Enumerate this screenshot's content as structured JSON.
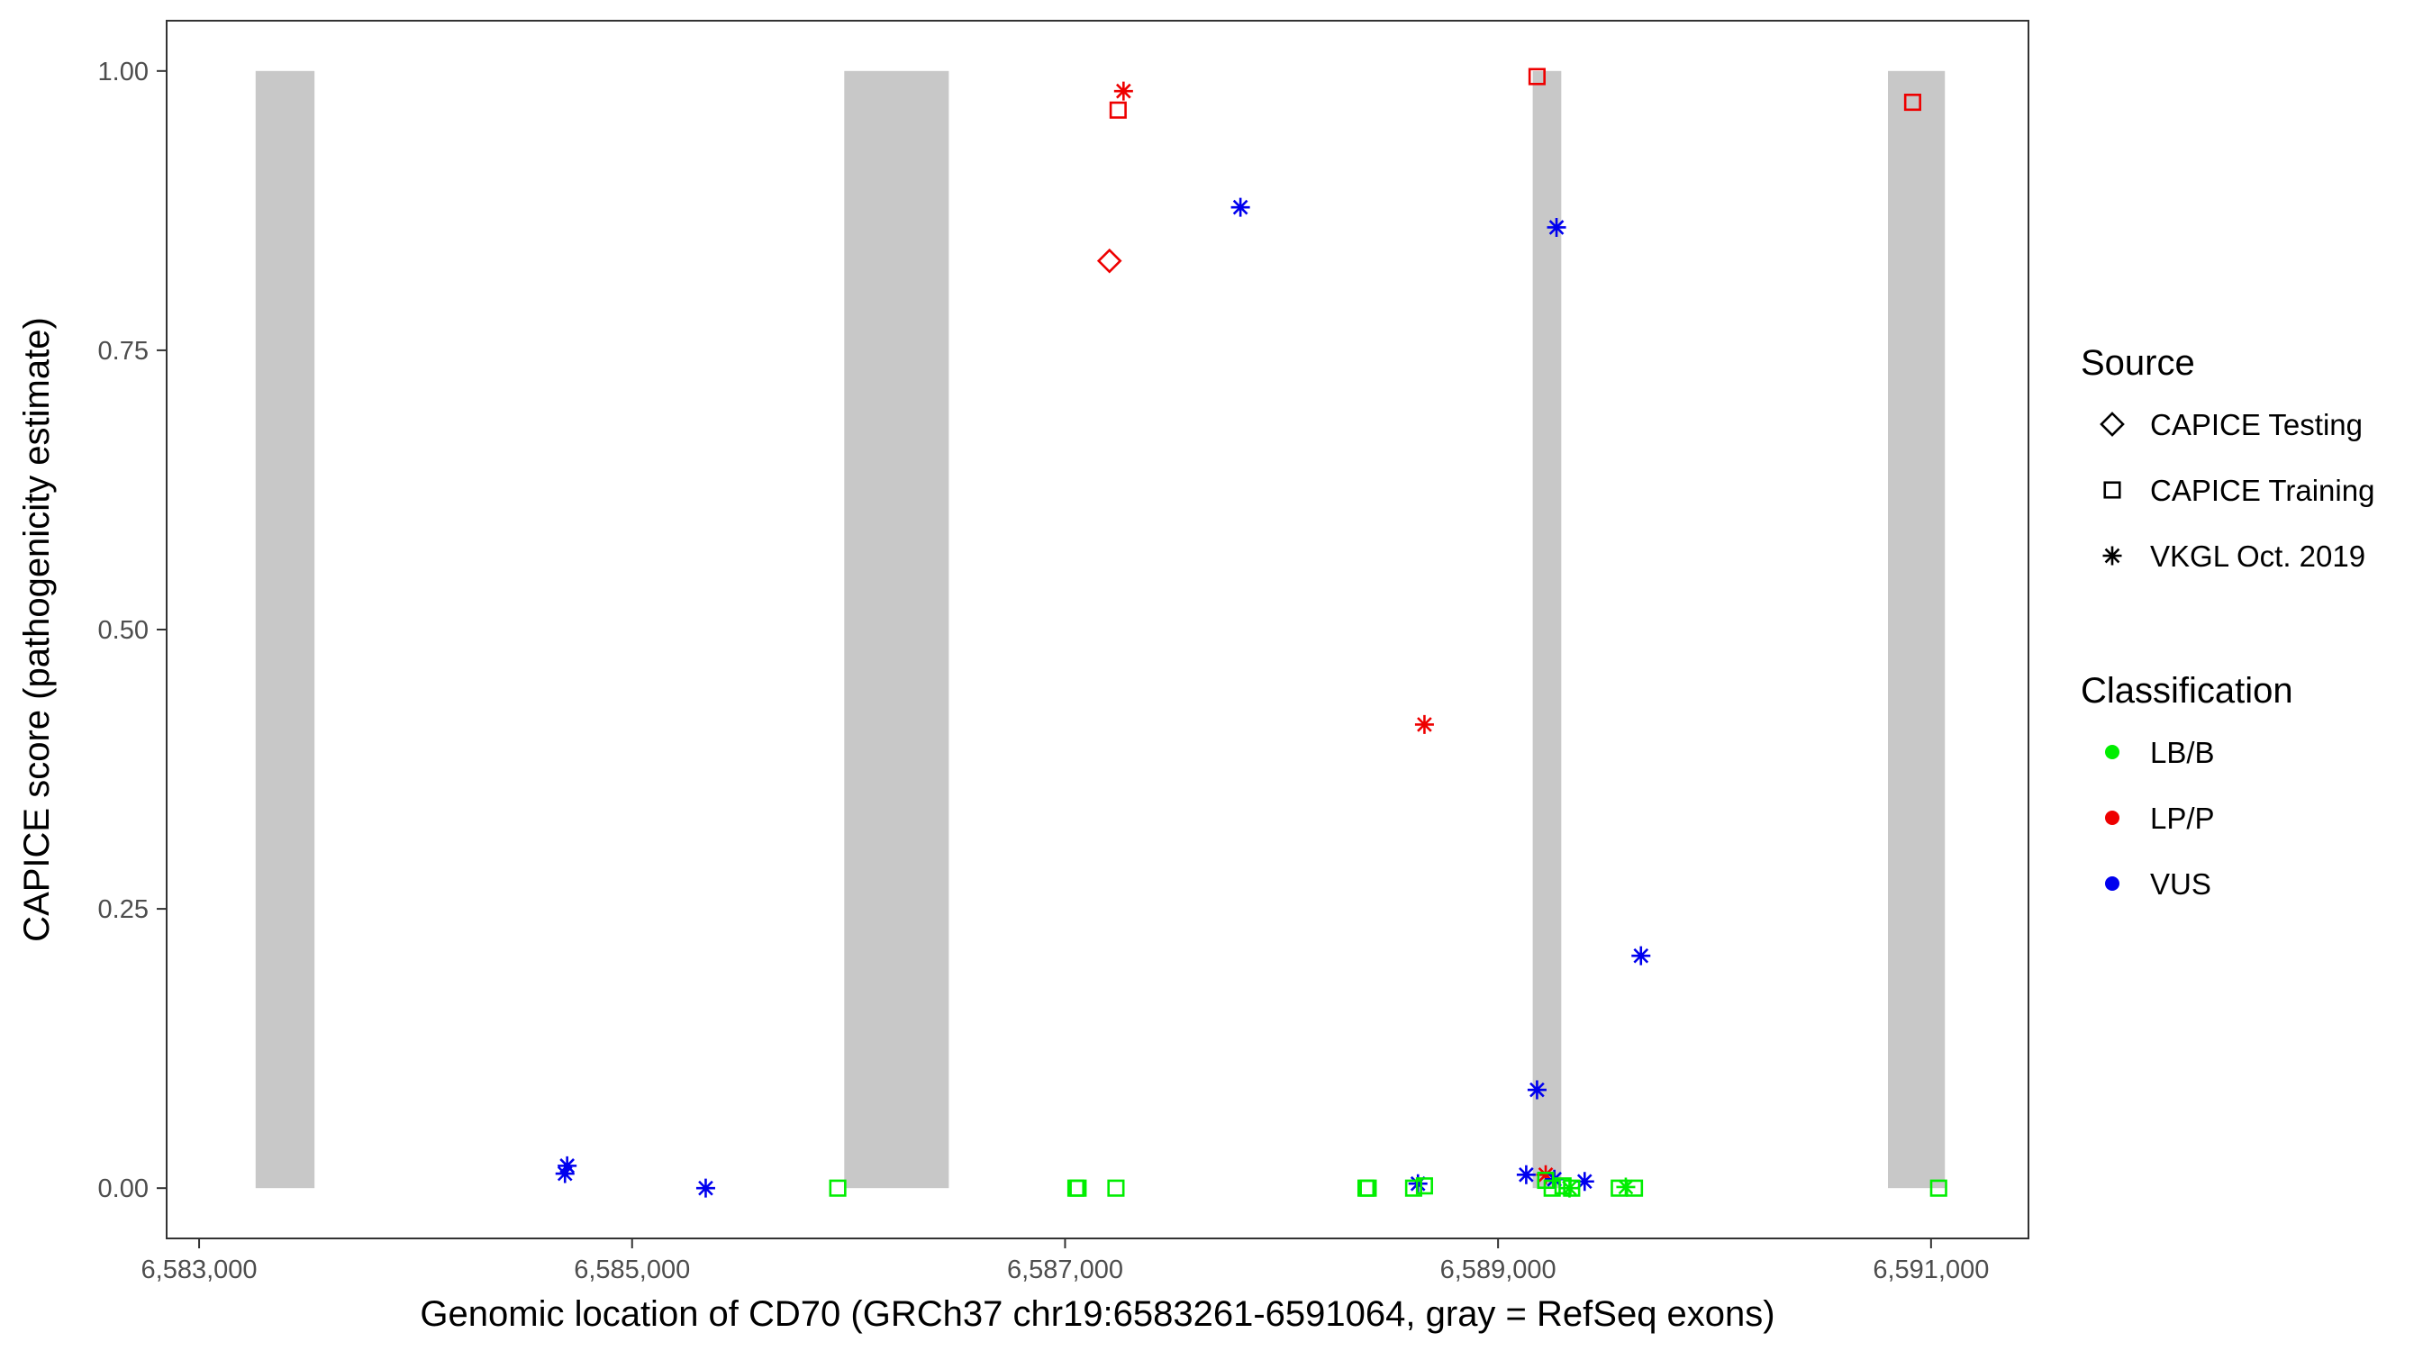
{
  "chart_data": {
    "type": "scatter",
    "title": "",
    "xlabel": "Genomic location of CD70 (GRCh37 chr19:6583261-6591064, gray = RefSeq exons)",
    "ylabel": "CAPICE score (pathogenicity estimate)",
    "xlim": [
      6582850,
      6591450
    ],
    "ylim": [
      -0.045,
      1.045
    ],
    "x_ticks": [
      6583000,
      6585000,
      6587000,
      6589000,
      6591000
    ],
    "x_tick_labels": [
      "6,583,000",
      "6,585,000",
      "6,587,000",
      "6,589,000",
      "6,591,000"
    ],
    "y_ticks": [
      0,
      0.25,
      0.5,
      0.75,
      1.0
    ],
    "y_tick_labels": [
      "0.00",
      "0.25",
      "0.50",
      "0.75",
      "1.00"
    ],
    "grid": false,
    "exons": [
      {
        "start": 6583261,
        "end": 6583533
      },
      {
        "start": 6585980,
        "end": 6586463
      },
      {
        "start": 6589160,
        "end": 6589292
      },
      {
        "start": 6590801,
        "end": 6591064
      }
    ],
    "exon_color": "#c8c8c8",
    "legend": {
      "position": "right",
      "source": {
        "title": "Source",
        "entries": [
          {
            "label": "CAPICE Testing",
            "shape": "diamond"
          },
          {
            "label": "CAPICE Training",
            "shape": "square"
          },
          {
            "label": "VKGL Oct. 2019",
            "shape": "asterisk"
          }
        ]
      },
      "classification": {
        "title": "Classification",
        "entries": [
          {
            "label": "LB/B",
            "color": "#00ee00"
          },
          {
            "label": "LP/P",
            "color": "#ee0000"
          },
          {
            "label": "VUS",
            "color": "#0000ee"
          }
        ]
      }
    },
    "points": [
      {
        "x": 6587205,
        "y": 0.83,
        "shape": "diamond",
        "cls": "LP/P"
      },
      {
        "x": 6587245,
        "y": 0.965,
        "shape": "square",
        "cls": "LP/P"
      },
      {
        "x": 6589180,
        "y": 0.995,
        "shape": "square",
        "cls": "LP/P"
      },
      {
        "x": 6590915,
        "y": 0.972,
        "shape": "square",
        "cls": "LP/P"
      },
      {
        "x": 6587270,
        "y": 0.982,
        "shape": "asterisk",
        "cls": "LP/P"
      },
      {
        "x": 6588660,
        "y": 0.415,
        "shape": "asterisk",
        "cls": "LP/P"
      },
      {
        "x": 6589220,
        "y": 0.012,
        "shape": "asterisk",
        "cls": "LP/P"
      },
      {
        "x": 6587810,
        "y": 0.878,
        "shape": "asterisk",
        "cls": "VUS"
      },
      {
        "x": 6589270,
        "y": 0.86,
        "shape": "asterisk",
        "cls": "VUS"
      },
      {
        "x": 6589660,
        "y": 0.208,
        "shape": "asterisk",
        "cls": "VUS"
      },
      {
        "x": 6589180,
        "y": 0.088,
        "shape": "asterisk",
        "cls": "VUS"
      },
      {
        "x": 6584700,
        "y": 0.02,
        "shape": "asterisk",
        "cls": "VUS"
      },
      {
        "x": 6584690,
        "y": 0.013,
        "shape": "asterisk",
        "cls": "VUS"
      },
      {
        "x": 6585340,
        "y": 0.0,
        "shape": "asterisk",
        "cls": "VUS"
      },
      {
        "x": 6588630,
        "y": 0.004,
        "shape": "asterisk",
        "cls": "VUS"
      },
      {
        "x": 6589130,
        "y": 0.012,
        "shape": "asterisk",
        "cls": "VUS"
      },
      {
        "x": 6589260,
        "y": 0.008,
        "shape": "asterisk",
        "cls": "VUS"
      },
      {
        "x": 6589400,
        "y": 0.006,
        "shape": "asterisk",
        "cls": "VUS"
      },
      {
        "x": 6585950,
        "y": 0.0,
        "shape": "square",
        "cls": "LB/B"
      },
      {
        "x": 6587050,
        "y": 0.0,
        "shape": "square",
        "cls": "LB/B"
      },
      {
        "x": 6587060,
        "y": 0.0,
        "shape": "square",
        "cls": "LB/B"
      },
      {
        "x": 6587235,
        "y": 0.0,
        "shape": "square",
        "cls": "LB/B"
      },
      {
        "x": 6588390,
        "y": 0.0,
        "shape": "square",
        "cls": "LB/B"
      },
      {
        "x": 6588400,
        "y": 0.0,
        "shape": "square",
        "cls": "LB/B"
      },
      {
        "x": 6588610,
        "y": 0.0,
        "shape": "square",
        "cls": "LB/B"
      },
      {
        "x": 6588660,
        "y": 0.002,
        "shape": "square",
        "cls": "LB/B"
      },
      {
        "x": 6589220,
        "y": 0.007,
        "shape": "square",
        "cls": "LB/B"
      },
      {
        "x": 6589250,
        "y": 0.0,
        "shape": "square",
        "cls": "LB/B"
      },
      {
        "x": 6589300,
        "y": 0.002,
        "shape": "square",
        "cls": "LB/B"
      },
      {
        "x": 6589340,
        "y": 0.0,
        "shape": "square",
        "cls": "LB/B"
      },
      {
        "x": 6589560,
        "y": 0.0,
        "shape": "square",
        "cls": "LB/B"
      },
      {
        "x": 6589630,
        "y": 0.0,
        "shape": "square",
        "cls": "LB/B"
      },
      {
        "x": 6591035,
        "y": 0.0,
        "shape": "square",
        "cls": "LB/B"
      },
      {
        "x": 6589330,
        "y": 0.0,
        "shape": "asterisk",
        "cls": "LB/B"
      },
      {
        "x": 6589590,
        "y": 0.001,
        "shape": "asterisk",
        "cls": "LB/B"
      }
    ]
  }
}
